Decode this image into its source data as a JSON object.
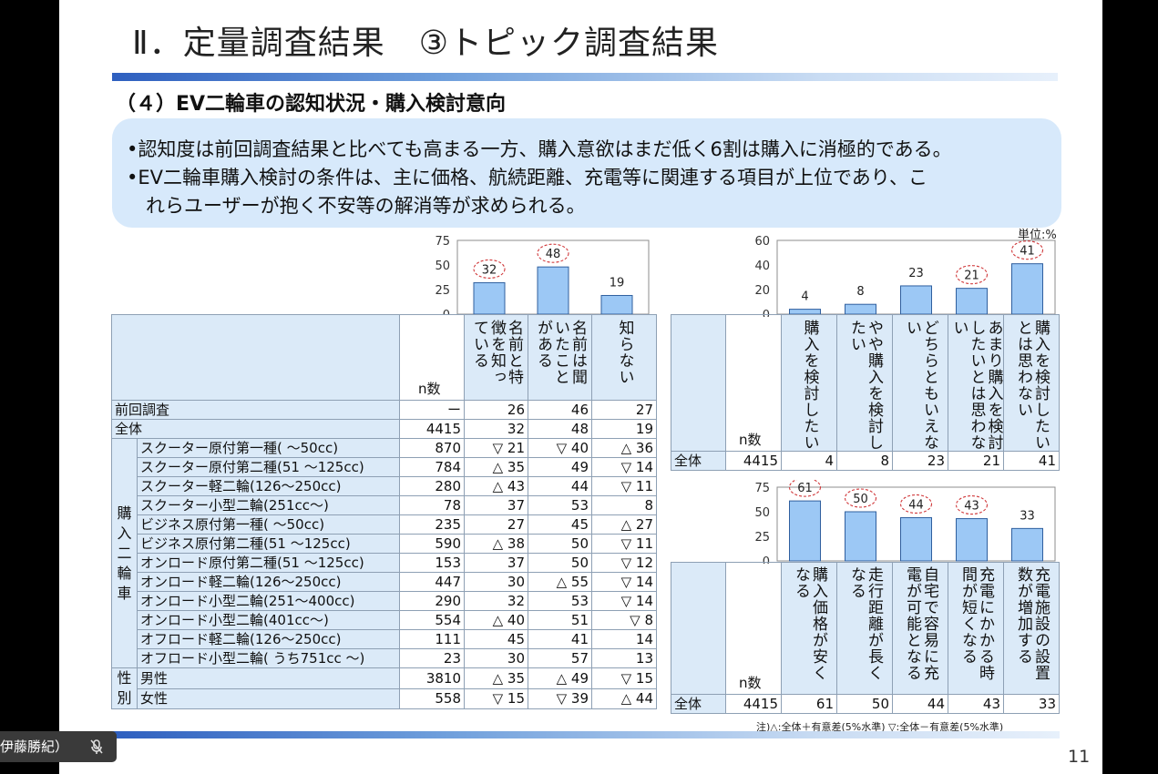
{
  "slide": {
    "title": "Ⅱ．定量調査結果　③トピック調査結果",
    "subtitle": "（４）EV二輪車の認知状況・購入検討意向",
    "summary": [
      "•認知度は前回調査結果と比べても高まる一方、購入意欲はまだ低く6割は購入に消極的である。",
      "•EV二輪車購入検討の条件は、主に価格、航続距離、充電等に関連する項目が上位であり、こ",
      "　れらユーザーが抱く不安等の解消等が求められる。"
    ],
    "unit": "単位:%",
    "footnote": "注)△:全体＋有意差(5%水準) ▽:全体－有意差(5%水準)",
    "page_number": "11"
  },
  "participant": {
    "name": "伊藤勝紀）",
    "icon": "mic-muted-icon"
  },
  "awareness_table": {
    "n_label": "n数",
    "columns": [
      "名前と特徴を知っている",
      "名前は聞いたことがある",
      "知らない"
    ],
    "rows": [
      {
        "label": "前回調査",
        "n": "ー",
        "values": [
          "26",
          "46",
          "27"
        ]
      },
      {
        "label": "全体",
        "n": "4415",
        "values": [
          "32",
          "48",
          "19"
        ]
      },
      {
        "group": "購入二輪車",
        "label": "スクーター原付第一種( ～50cc)",
        "n": "870",
        "values": [
          "▽ 21",
          "▽ 40",
          "△ 36"
        ]
      },
      {
        "group": "購入二輪車",
        "label": "スクーター原付第二種(51 ～125cc)",
        "n": "784",
        "values": [
          "△ 35",
          "49",
          "▽ 14"
        ]
      },
      {
        "group": "購入二輪車",
        "label": "スクーター軽二輪(126～250cc)",
        "n": "280",
        "values": [
          "△ 43",
          "44",
          "▽ 11"
        ]
      },
      {
        "group": "購入二輪車",
        "label": "スクーター小型二輪(251cc～)",
        "n": "78",
        "values": [
          "37",
          "53",
          "8"
        ]
      },
      {
        "group": "購入二輪車",
        "label": "ビジネス原付第一種( ～50cc)",
        "n": "235",
        "values": [
          "27",
          "45",
          "△ 27"
        ]
      },
      {
        "group": "購入二輪車",
        "label": "ビジネス原付第二種(51 ～125cc)",
        "n": "590",
        "values": [
          "△ 38",
          "50",
          "▽ 11"
        ]
      },
      {
        "group": "購入二輪車",
        "label": "オンロード原付第二種(51 ～125cc)",
        "n": "153",
        "values": [
          "37",
          "50",
          "▽ 12"
        ]
      },
      {
        "group": "購入二輪車",
        "label": "オンロード軽二輪(126～250cc)",
        "n": "447",
        "values": [
          "30",
          "△ 55",
          "▽ 14"
        ]
      },
      {
        "group": "購入二輪車",
        "label": "オンロード小型二輪(251～400cc)",
        "n": "290",
        "values": [
          "32",
          "53",
          "▽ 14"
        ]
      },
      {
        "group": "購入二輪車",
        "label": "オンロード小型二輪(401cc～)",
        "n": "554",
        "values": [
          "△ 40",
          "51",
          "▽ 8"
        ]
      },
      {
        "group": "購入二輪車",
        "label": "オフロード軽二輪(126～250cc)",
        "n": "111",
        "values": [
          "45",
          "41",
          "14"
        ]
      },
      {
        "group": "購入二輪車",
        "label": "オフロード小型二輪( うち751cc ～)",
        "n": "23",
        "values": [
          "30",
          "57",
          "13"
        ]
      },
      {
        "group": "性別",
        "label": "男性",
        "n": "3810",
        "values": [
          "△ 35",
          "△ 49",
          "▽ 15"
        ]
      },
      {
        "group": "性別",
        "label": "女性",
        "n": "558",
        "values": [
          "▽ 15",
          "▽ 39",
          "△ 44"
        ]
      }
    ],
    "groups": [
      "購入二輪車",
      "性別"
    ]
  },
  "intent_table": {
    "n_label": "n数",
    "columns": [
      "購入を検討したい",
      "やや購入を検討したい",
      "どちらともいえない",
      "あまり購入を検討したいとは思わない",
      "購入を検討したいとは思わない"
    ],
    "row": {
      "label": "全体",
      "n": "4415",
      "values": [
        "4",
        "8",
        "23",
        "21",
        "41"
      ]
    }
  },
  "condition_table": {
    "n_label": "n数",
    "columns": [
      "購入価格が安くなる",
      "走行距離が長くなる",
      "自宅で容易に充電が可能となる",
      "充電にかかる時間が短くなる",
      "充電施設の設置数が増加する"
    ],
    "row": {
      "label": "全体",
      "n": "4415",
      "values": [
        "61",
        "50",
        "44",
        "43",
        "33"
      ]
    }
  },
  "chart_data": [
    {
      "type": "bar",
      "categories": [
        "名前と特徴を知っている",
        "名前は聞いたことがある",
        "知らない"
      ],
      "values": [
        32,
        48,
        19
      ],
      "ylim": [
        0,
        75
      ],
      "yticks": [
        0,
        25,
        50,
        75
      ],
      "highlighted": [
        true,
        true,
        false
      ],
      "bar_color": "#9cc8f5"
    },
    {
      "type": "bar",
      "categories": [
        "購入を検討したい",
        "やや購入を検討したい",
        "どちらともいえない",
        "あまり購入を検討したいとは思わない",
        "購入を検討したいとは思わない"
      ],
      "values": [
        4,
        8,
        23,
        21,
        41
      ],
      "ylim": [
        0,
        60
      ],
      "yticks": [
        0,
        20,
        40,
        60
      ],
      "highlighted": [
        false,
        false,
        false,
        true,
        true
      ],
      "bar_color": "#9cc8f5"
    },
    {
      "type": "bar",
      "categories": [
        "購入価格が安くなる",
        "走行距離が長くなる",
        "自宅で容易に充電が可能となる",
        "充電にかかる時間が短くなる",
        "充電施設の設置数が増加する"
      ],
      "values": [
        61,
        50,
        44,
        43,
        33
      ],
      "ylim": [
        0,
        75
      ],
      "yticks": [
        0,
        25,
        50,
        75
      ],
      "highlighted": [
        true,
        true,
        true,
        true,
        false
      ],
      "bar_color": "#9cc8f5"
    }
  ]
}
